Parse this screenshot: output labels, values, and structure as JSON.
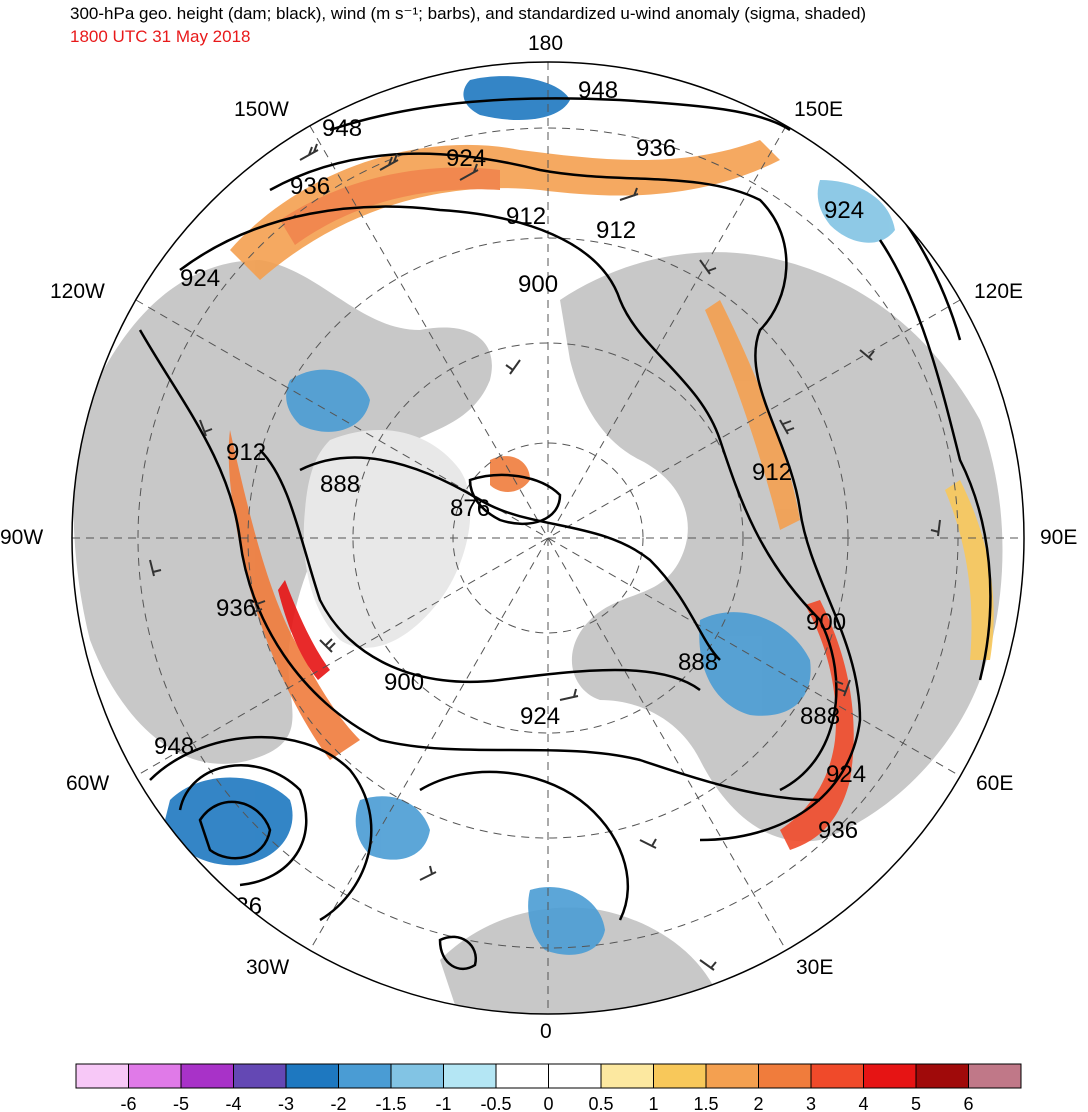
{
  "header": {
    "title": "300-hPa geo. height (dam; black), wind (m s⁻¹; barbs), and standardized u-wind anomaly (sigma, shaded)",
    "valid_time": "1800 UTC 31 May 2018"
  },
  "map": {
    "projection": "north polar stereographic",
    "longitude_labels": {
      "top": "180",
      "bottom": "0",
      "left": "90W",
      "right": "90E",
      "upper_left_1": "150W",
      "upper_left_2": "120W",
      "upper_right_1": "150E",
      "upper_right_2": "120E",
      "lower_left_1": "60W",
      "lower_left_2": "30W",
      "lower_right_1": "60E",
      "lower_right_2": "30E"
    },
    "contour_labels": [
      "948",
      "936",
      "924",
      "912",
      "900",
      "888",
      "876",
      "948",
      "936",
      "924",
      "912",
      "900",
      "888",
      "924",
      "936",
      "912",
      "900",
      "888",
      "924",
      "936",
      "948",
      "936",
      "912",
      "924"
    ],
    "colors": {
      "land": "#c8c8c8",
      "ocean": "#ffffff",
      "contour": "#000000",
      "graticule": "#555555"
    }
  },
  "colorbar": {
    "labels": [
      "-6",
      "-5",
      "-4",
      "-3",
      "-2",
      "-1.5",
      "-1",
      "-0.5",
      "0",
      "0.5",
      "1",
      "1.5",
      "2",
      "3",
      "4",
      "5",
      "6"
    ],
    "colors": [
      "#f7c8f7",
      "#e07ae8",
      "#a832c8",
      "#6448b4",
      "#1e78c0",
      "#4a9cd4",
      "#82c4e4",
      "#b4e6f4",
      "#ffffff",
      "#ffffff",
      "#fce8a0",
      "#f8c85a",
      "#f4a050",
      "#f07c3c",
      "#f04a2a",
      "#e61414",
      "#a00a0a",
      "#c07888"
    ]
  }
}
